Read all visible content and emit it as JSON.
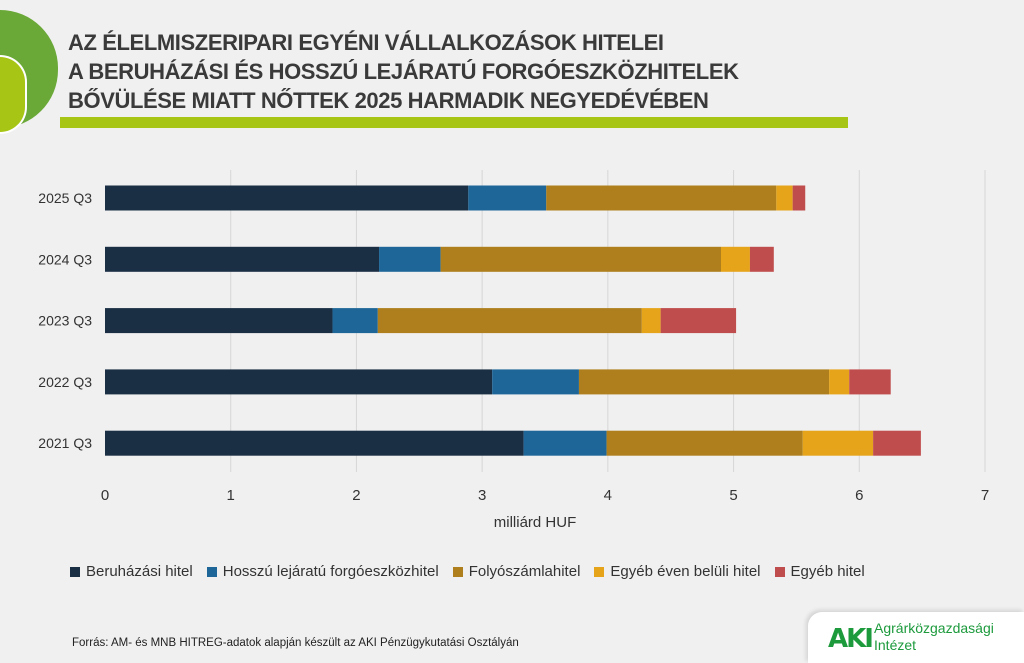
{
  "header": {
    "title_lines": [
      "AZ ÉLELMISZERIPARI EGYÉNI VÁLLALKOZÁSOK HITELEI",
      "A BERUHÁZÁSI ÉS HOSSZÚ LEJÁRATÚ FORGÓESZKÖZHITELEK",
      "BŐVÜLÉSE MIATT NŐTTEK 2025 HARMADIK NEGYEDÉVÉBEN"
    ],
    "accent_color": "#a6c515"
  },
  "chart_data": {
    "type": "bar",
    "orientation": "horizontal",
    "stacked": true,
    "categories": [
      "2025 Q3",
      "2024 Q3",
      "2023 Q3",
      "2022 Q3",
      "2021 Q3"
    ],
    "xlabel": "milliárd HUF",
    "xlim": [
      0,
      7
    ],
    "xticks": [
      "0",
      "1",
      "2",
      "3",
      "4",
      "5",
      "6",
      "7"
    ],
    "grid": "vertical",
    "legend_position": "bottom",
    "series": [
      {
        "name": "Beruházási hitel",
        "color": "#1a2e44",
        "values": [
          2.89,
          2.18,
          1.81,
          3.08,
          3.33
        ]
      },
      {
        "name": "Hosszú lejáratú forgóeszközhitel",
        "color": "#1e6698",
        "values": [
          0.62,
          0.49,
          0.36,
          0.69,
          0.66
        ]
      },
      {
        "name": "Folyószámlahitel",
        "color": "#ae7f1c",
        "values": [
          1.83,
          2.23,
          2.1,
          1.99,
          1.56
        ]
      },
      {
        "name": "Egyéb éven belüli hitel",
        "color": "#e6a41a",
        "values": [
          0.13,
          0.23,
          0.15,
          0.16,
          0.56
        ]
      },
      {
        "name": "Egyéb hitel",
        "color": "#c04d4d",
        "values": [
          0.1,
          0.19,
          0.6,
          0.33,
          0.38
        ]
      }
    ]
  },
  "footer": {
    "source": "Forrás: AM- és MNB HITREG-adatok alapján készült az AKI Pénzügykutatási Osztályán",
    "logo_mark": "AKI",
    "logo_text_1": "Agrárközgazdasági",
    "logo_text_2": "Intézet"
  }
}
